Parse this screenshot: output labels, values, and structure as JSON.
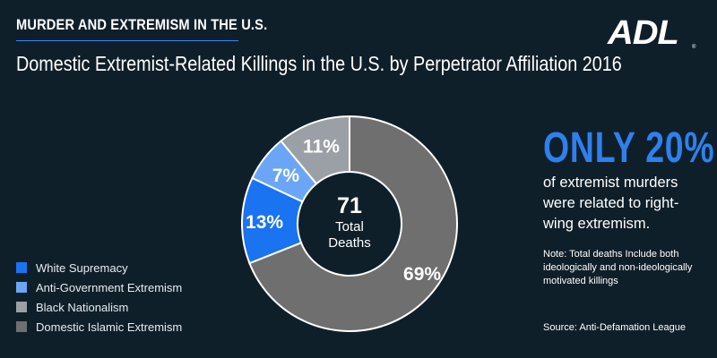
{
  "header": {
    "kicker": "MURDER AND EXTREMISM IN THE U.S.",
    "title": "Domestic Extremist-Related Killings in the U.S. by Perpetrator Affiliation 2016",
    "logo": "ADL"
  },
  "chart_data": {
    "type": "pie",
    "title": "Domestic Extremist-Related Killings in the U.S. by Perpetrator Affiliation 2016",
    "center_value": "71",
    "center_label_line1": "Total",
    "center_label_line2": "Deaths",
    "legend_position": "bottom-left",
    "slices": [
      {
        "name": "White Supremacy",
        "value": 13,
        "label": "13%",
        "color": "#1a73f0"
      },
      {
        "name": "Anti-Government Extremism",
        "value": 7,
        "label": "7%",
        "color": "#6aa6f5"
      },
      {
        "name": "Black Nationalism",
        "value": 11,
        "label": "11%",
        "color": "#9aa0a6"
      },
      {
        "name": "Domestic Islamic Extremism",
        "value": 69,
        "label": "69%",
        "color": "#6f6f70"
      }
    ]
  },
  "callout": {
    "headline": "ONLY 20%",
    "subline": "of extremist murders were related to right-wing extremism.",
    "note": "Note: Total deaths Include both ideologically and non-ideologically motivated killings",
    "source": "Source: Anti-Defamation League"
  }
}
